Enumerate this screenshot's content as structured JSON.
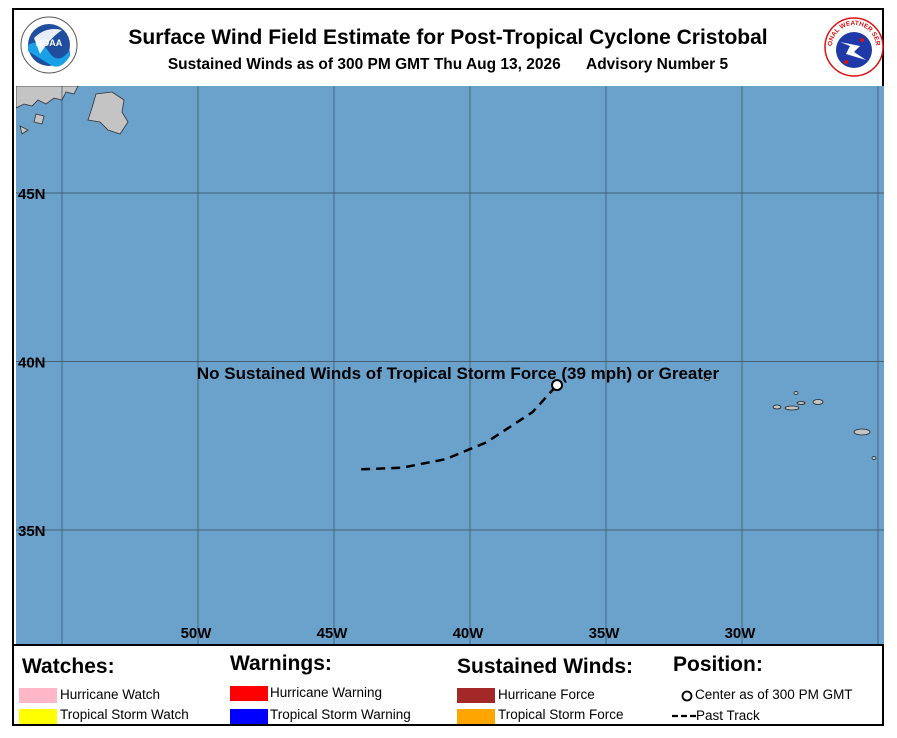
{
  "header": {
    "title": "Surface Wind Field Estimate for Post-Tropical Cyclone Cristobal",
    "subtitle": "Sustained Winds as of 300 PM GMT Thu Aug 13, 2026",
    "advisory": "Advisory Number 5",
    "noaa_logo_text": "NOAA",
    "nws_logo_text": "NATIONAL WEATHER SERVICE"
  },
  "map": {
    "ocean_color": "#6aa2cc",
    "land_color": "#c4c4c4",
    "lat_labels": [
      "45N",
      "40N",
      "35N"
    ],
    "lon_labels": [
      "50W",
      "45W",
      "40W",
      "35W",
      "30W"
    ],
    "message": "No Sustained Winds of Tropical Storm Force (39 mph) or Greater",
    "center_position": {
      "lat": 39.3,
      "lon": -36.8
    },
    "past_track": [
      {
        "lat": 36.8,
        "lon": -44.0
      },
      {
        "lat": 36.85,
        "lon": -42.5
      },
      {
        "lat": 37.1,
        "lon": -40.9
      },
      {
        "lat": 37.6,
        "lon": -39.4
      },
      {
        "lat": 38.5,
        "lon": -37.7
      },
      {
        "lat": 39.3,
        "lon": -36.8
      }
    ]
  },
  "legend": {
    "watches": {
      "heading": "Watches:",
      "items": [
        {
          "label": "Hurricane Watch",
          "color": "#ffb6c6"
        },
        {
          "label": "Tropical Storm Watch",
          "color": "#ffff00"
        }
      ]
    },
    "warnings": {
      "heading": "Warnings:",
      "items": [
        {
          "label": "Hurricane Warning",
          "color": "#ff0000"
        },
        {
          "label": "Tropical Storm Warning",
          "color": "#0000ff"
        }
      ]
    },
    "winds": {
      "heading": "Sustained Winds:",
      "items": [
        {
          "label": "Hurricane Force",
          "color": "#a52828"
        },
        {
          "label": "Tropical Storm Force",
          "color": "#ffa500"
        }
      ]
    },
    "position": {
      "heading": "Position:",
      "center_label": "Center as of 300 PM GMT",
      "track_label": "Past Track"
    }
  }
}
